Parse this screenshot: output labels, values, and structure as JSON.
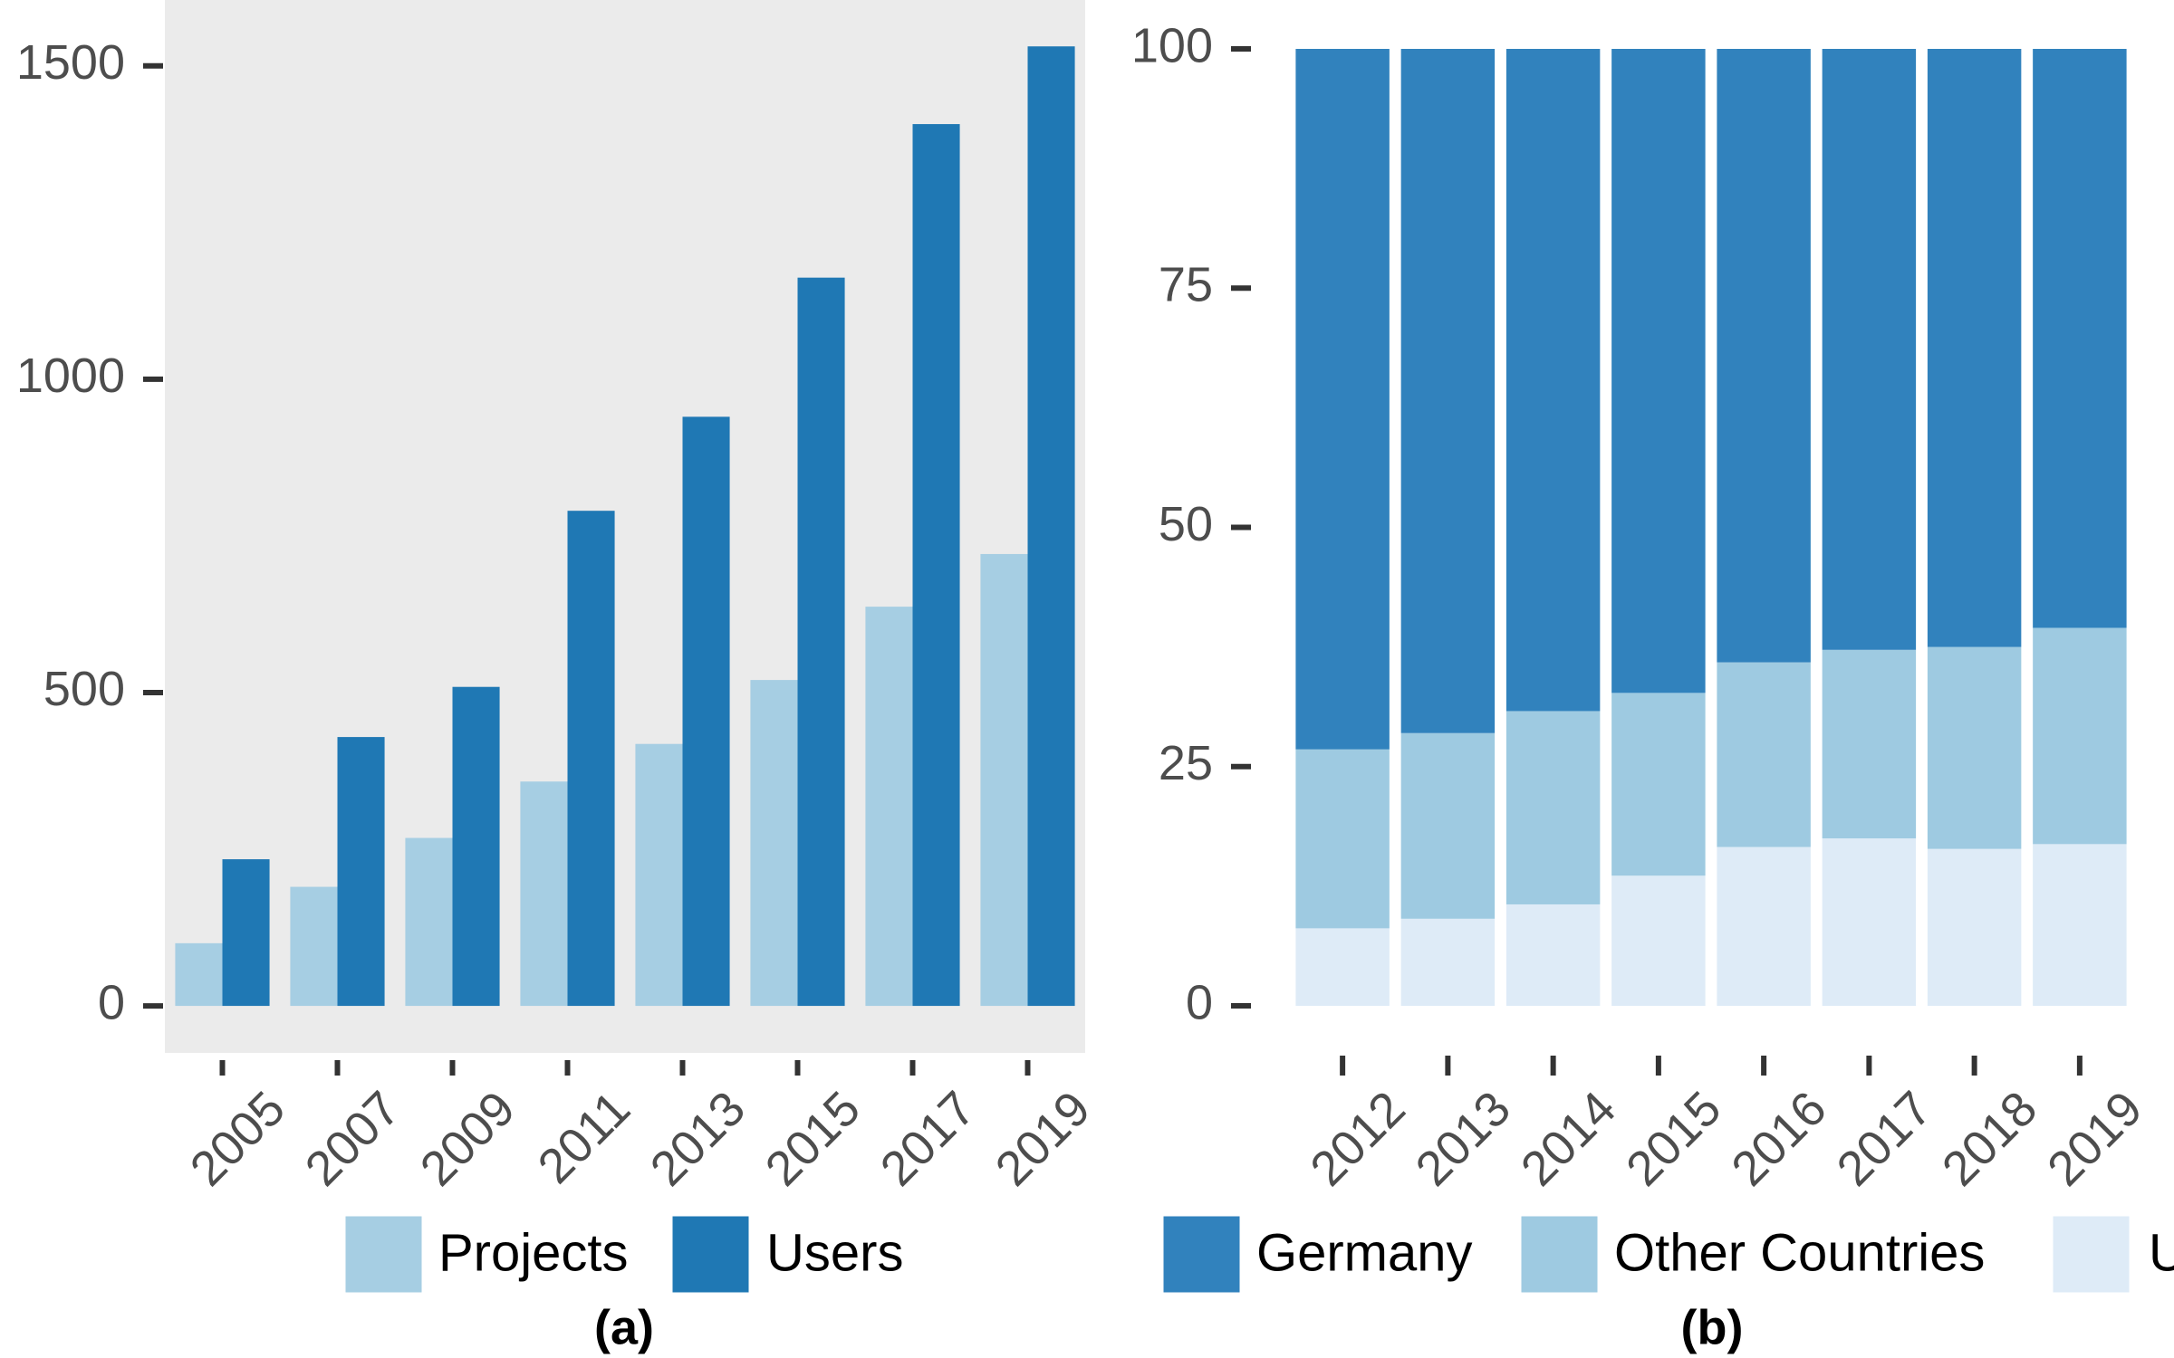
{
  "chart_data": [
    {
      "type": "bar",
      "caption": "(a)",
      "categories": [
        "2005",
        "2007",
        "2009",
        "2011",
        "2013",
        "2015",
        "2017",
        "2019"
      ],
      "series": [
        {
          "name": "Projects",
          "color": "#a6cee3",
          "values": [
            100,
            190,
            268,
            358,
            418,
            520,
            637,
            721
          ]
        },
        {
          "name": "Users",
          "color": "#1f78b4",
          "values": [
            234,
            429,
            509,
            790,
            940,
            1162,
            1407,
            1531
          ]
        }
      ],
      "ylim": [
        -75,
        1605
      ],
      "yticks": [
        0,
        500,
        1000,
        1500
      ],
      "panel_background": "#ebebeb"
    },
    {
      "type": "stacked_bar",
      "caption": "(b)",
      "categories": [
        "2012",
        "2013",
        "2014",
        "2015",
        "2016",
        "2017",
        "2018",
        "2019"
      ],
      "series": [
        {
          "name": "U",
          "color": "#deebf7",
          "values": [
            8.1,
            9.1,
            10.6,
            13.6,
            16.6,
            17.5,
            16.4,
            16.9
          ]
        },
        {
          "name": "Other Countries",
          "color": "#9ecae1",
          "values": [
            18.7,
            19.4,
            20.2,
            19.1,
            19.3,
            19.7,
            21.1,
            22.6
          ]
        },
        {
          "name": "Germany",
          "color": "#3182bd",
          "values": [
            73.2,
            71.5,
            69.2,
            67.3,
            64.1,
            62.8,
            62.5,
            60.5
          ]
        }
      ],
      "ylim": [
        0,
        100
      ],
      "yticks": [
        0,
        25,
        50,
        75,
        100
      ]
    }
  ]
}
